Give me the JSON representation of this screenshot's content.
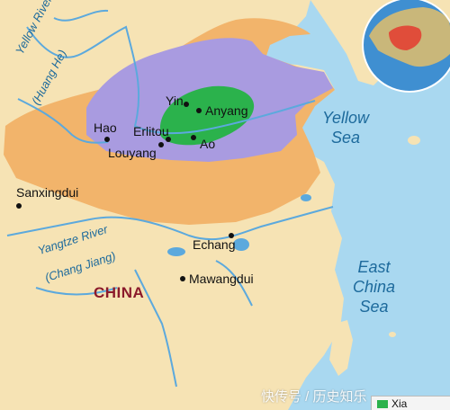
{
  "map": {
    "colors": {
      "sea": "#a9d8f0",
      "land": "#f6e3b4",
      "orange_region": "#f2b46b",
      "purple_region": "#a99be0",
      "green_region": "#2bb24c",
      "river": "#5ca9dd",
      "label_sea": "#1d6a9c",
      "label_country": "#8b1a2b"
    },
    "country_label": "CHINA",
    "seas": [
      {
        "line1": "Yellow",
        "line2": "Sea"
      },
      {
        "line1": "East",
        "line2": "China",
        "line3": "Sea"
      }
    ],
    "rivers": [
      {
        "line1": "Yellow River",
        "line2": "(Huang He)"
      },
      {
        "line1": "Yangtze River",
        "line2": "(Chang Jiang)"
      }
    ],
    "sites": [
      {
        "name": "Yin"
      },
      {
        "name": "Anyang"
      },
      {
        "name": "Hao"
      },
      {
        "name": "Erlitou"
      },
      {
        "name": "Louyang"
      },
      {
        "name": "Ao"
      },
      {
        "name": "Sanxingdui"
      },
      {
        "name": "Echang"
      },
      {
        "name": "Mawangdui"
      }
    ],
    "legend": {
      "label": "Xia",
      "swatch_color": "#2bb24c"
    },
    "watermark": "快传号 / 历史知乐"
  }
}
